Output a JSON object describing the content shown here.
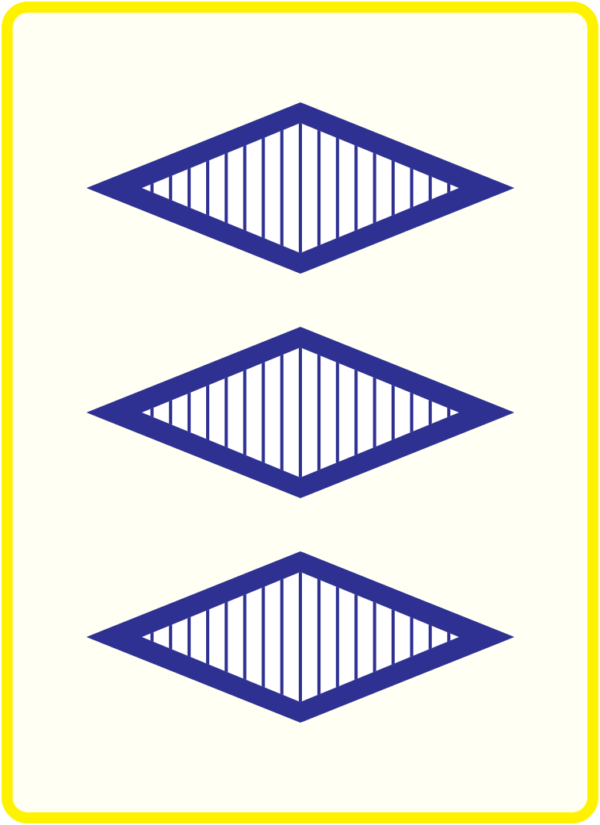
{
  "card": {
    "count": 3,
    "color": "purple",
    "shape": "diamond",
    "shading": "striped",
    "colors": {
      "border": "#fff200",
      "face": "#fffff3",
      "symbol": "#2e3192",
      "stripe_gap": "#ffffff"
    },
    "symbols": [
      {
        "shape": "diamond",
        "shading": "striped"
      },
      {
        "shape": "diamond",
        "shading": "striped"
      },
      {
        "shape": "diamond",
        "shading": "striped"
      }
    ]
  }
}
